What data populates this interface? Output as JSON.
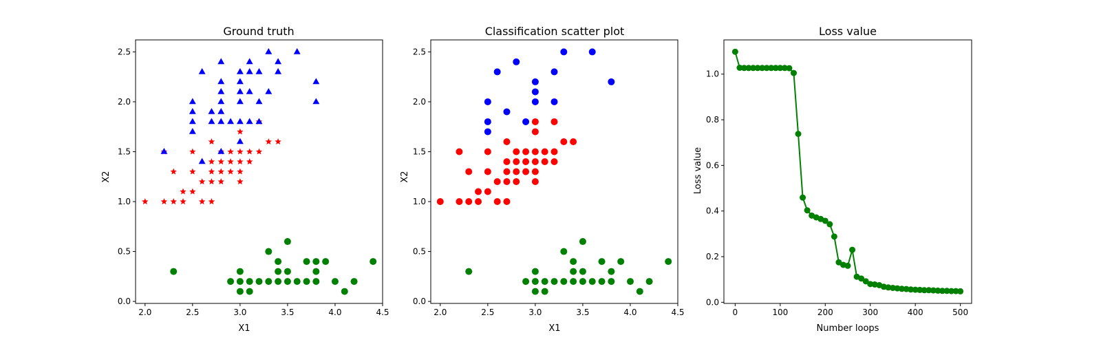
{
  "chart_data": [
    {
      "type": "scatter",
      "title": "Ground truth",
      "xlabel": "X1",
      "ylabel": "X2",
      "xlim": [
        1.9,
        4.5
      ],
      "ylim": [
        -0.02,
        2.62
      ],
      "xticks": [
        "2.0",
        "2.5",
        "3.0",
        "3.5",
        "4.0",
        "4.5"
      ],
      "yticks": [
        "0.0",
        "0.5",
        "1.0",
        "1.5",
        "2.0",
        "2.5"
      ],
      "series": [
        {
          "marker": "circle",
          "color": "#008000",
          "points": [
            [
              2.3,
              0.3
            ],
            [
              2.9,
              0.2
            ],
            [
              3.0,
              0.2
            ],
            [
              3.0,
              0.1
            ],
            [
              3.0,
              0.3
            ],
            [
              3.1,
              0.1
            ],
            [
              3.1,
              0.2
            ],
            [
              3.2,
              0.2
            ],
            [
              3.3,
              0.2
            ],
            [
              3.3,
              0.5
            ],
            [
              3.4,
              0.2
            ],
            [
              3.4,
              0.3
            ],
            [
              3.4,
              0.4
            ],
            [
              3.5,
              0.2
            ],
            [
              3.5,
              0.3
            ],
            [
              3.5,
              0.6
            ],
            [
              3.6,
              0.2
            ],
            [
              3.7,
              0.2
            ],
            [
              3.7,
              0.4
            ],
            [
              3.8,
              0.2
            ],
            [
              3.8,
              0.3
            ],
            [
              3.8,
              0.4
            ],
            [
              3.9,
              0.4
            ],
            [
              4.0,
              0.2
            ],
            [
              4.1,
              0.1
            ],
            [
              4.2,
              0.2
            ],
            [
              4.4,
              0.4
            ]
          ]
        },
        {
          "marker": "star",
          "color": "#ff0000",
          "points": [
            [
              2.0,
              1.0
            ],
            [
              2.2,
              1.0
            ],
            [
              2.2,
              1.5
            ],
            [
              2.3,
              1.0
            ],
            [
              2.3,
              1.3
            ],
            [
              2.4,
              1.0
            ],
            [
              2.4,
              1.1
            ],
            [
              2.5,
              1.1
            ],
            [
              2.5,
              1.3
            ],
            [
              2.5,
              1.5
            ],
            [
              2.6,
              1.0
            ],
            [
              2.6,
              1.2
            ],
            [
              2.7,
              1.0
            ],
            [
              2.7,
              1.2
            ],
            [
              2.7,
              1.3
            ],
            [
              2.7,
              1.4
            ],
            [
              2.7,
              1.6
            ],
            [
              2.8,
              1.2
            ],
            [
              2.8,
              1.3
            ],
            [
              2.8,
              1.4
            ],
            [
              2.8,
              1.5
            ],
            [
              2.9,
              1.3
            ],
            [
              2.9,
              1.4
            ],
            [
              2.9,
              1.5
            ],
            [
              3.0,
              1.2
            ],
            [
              3.0,
              1.3
            ],
            [
              3.0,
              1.4
            ],
            [
              3.0,
              1.5
            ],
            [
              3.0,
              1.7
            ],
            [
              3.1,
              1.4
            ],
            [
              3.1,
              1.5
            ],
            [
              3.2,
              1.5
            ],
            [
              3.2,
              1.8
            ],
            [
              3.3,
              1.6
            ],
            [
              3.4,
              1.6
            ]
          ]
        },
        {
          "marker": "triangle",
          "color": "#0000ff",
          "points": [
            [
              2.2,
              1.5
            ],
            [
              2.5,
              1.7
            ],
            [
              2.5,
              1.8
            ],
            [
              2.5,
              1.9
            ],
            [
              2.5,
              2.0
            ],
            [
              2.6,
              1.4
            ],
            [
              2.6,
              2.3
            ],
            [
              2.7,
              1.8
            ],
            [
              2.7,
              1.9
            ],
            [
              2.8,
              1.5
            ],
            [
              2.8,
              1.8
            ],
            [
              2.8,
              1.9
            ],
            [
              2.8,
              2.0
            ],
            [
              2.8,
              2.1
            ],
            [
              2.8,
              2.2
            ],
            [
              2.8,
              2.4
            ],
            [
              2.9,
              1.8
            ],
            [
              3.0,
              1.6
            ],
            [
              3.0,
              1.8
            ],
            [
              3.0,
              2.0
            ],
            [
              3.0,
              2.1
            ],
            [
              3.0,
              2.3
            ],
            [
              3.0,
              2.2
            ],
            [
              3.1,
              1.8
            ],
            [
              3.1,
              2.1
            ],
            [
              3.1,
              2.3
            ],
            [
              3.1,
              2.4
            ],
            [
              3.2,
              1.8
            ],
            [
              3.2,
              2.0
            ],
            [
              3.2,
              2.3
            ],
            [
              3.3,
              2.1
            ],
            [
              3.3,
              2.5
            ],
            [
              3.4,
              2.3
            ],
            [
              3.4,
              2.4
            ],
            [
              3.6,
              2.5
            ],
            [
              3.8,
              2.0
            ],
            [
              3.8,
              2.2
            ]
          ]
        }
      ]
    },
    {
      "type": "scatter",
      "title": "Classification scatter plot",
      "xlabel": "X1",
      "ylabel": "X2",
      "xlim": [
        1.9,
        4.5
      ],
      "ylim": [
        -0.02,
        2.62
      ],
      "xticks": [
        "2.0",
        "2.5",
        "3.0",
        "3.5",
        "4.0",
        "4.5"
      ],
      "yticks": [
        "0.0",
        "0.5",
        "1.0",
        "1.5",
        "2.0",
        "2.5"
      ],
      "series": [
        {
          "marker": "circle",
          "color": "#008000",
          "points": [
            [
              2.3,
              0.3
            ],
            [
              2.9,
              0.2
            ],
            [
              3.0,
              0.2
            ],
            [
              3.0,
              0.1
            ],
            [
              3.0,
              0.3
            ],
            [
              3.1,
              0.1
            ],
            [
              3.1,
              0.2
            ],
            [
              3.2,
              0.2
            ],
            [
              3.3,
              0.2
            ],
            [
              3.3,
              0.5
            ],
            [
              3.4,
              0.2
            ],
            [
              3.4,
              0.3
            ],
            [
              3.4,
              0.4
            ],
            [
              3.5,
              0.2
            ],
            [
              3.5,
              0.3
            ],
            [
              3.5,
              0.6
            ],
            [
              3.6,
              0.2
            ],
            [
              3.7,
              0.2
            ],
            [
              3.7,
              0.4
            ],
            [
              3.8,
              0.2
            ],
            [
              3.8,
              0.3
            ],
            [
              3.9,
              0.4
            ],
            [
              4.0,
              0.2
            ],
            [
              4.1,
              0.1
            ],
            [
              4.2,
              0.2
            ],
            [
              4.4,
              0.4
            ]
          ]
        },
        {
          "marker": "circle",
          "color": "#ff0000",
          "points": [
            [
              2.0,
              1.0
            ],
            [
              2.2,
              1.0
            ],
            [
              2.2,
              1.5
            ],
            [
              2.3,
              1.0
            ],
            [
              2.3,
              1.3
            ],
            [
              2.4,
              1.0
            ],
            [
              2.4,
              1.1
            ],
            [
              2.5,
              1.1
            ],
            [
              2.5,
              1.3
            ],
            [
              2.5,
              1.5
            ],
            [
              2.6,
              1.0
            ],
            [
              2.6,
              1.2
            ],
            [
              2.7,
              1.0
            ],
            [
              2.7,
              1.2
            ],
            [
              2.7,
              1.3
            ],
            [
              2.7,
              1.4
            ],
            [
              2.7,
              1.6
            ],
            [
              2.8,
              1.2
            ],
            [
              2.8,
              1.3
            ],
            [
              2.8,
              1.4
            ],
            [
              2.8,
              1.5
            ],
            [
              2.9,
              1.3
            ],
            [
              2.9,
              1.4
            ],
            [
              2.9,
              1.5
            ],
            [
              3.0,
              1.2
            ],
            [
              3.0,
              1.3
            ],
            [
              3.0,
              1.4
            ],
            [
              3.0,
              1.5
            ],
            [
              3.0,
              1.7
            ],
            [
              3.0,
              1.8
            ],
            [
              3.1,
              1.4
            ],
            [
              3.1,
              1.5
            ],
            [
              3.2,
              1.4
            ],
            [
              3.2,
              1.5
            ],
            [
              3.2,
              1.8
            ],
            [
              3.3,
              1.6
            ],
            [
              3.4,
              1.6
            ]
          ]
        },
        {
          "marker": "circle",
          "color": "#0000ff",
          "points": [
            [
              2.5,
              1.7
            ],
            [
              2.5,
              1.8
            ],
            [
              2.5,
              2.0
            ],
            [
              2.6,
              2.3
            ],
            [
              2.7,
              1.9
            ],
            [
              2.8,
              2.4
            ],
            [
              2.9,
              1.8
            ],
            [
              3.0,
              2.0
            ],
            [
              3.0,
              2.1
            ],
            [
              3.0,
              2.2
            ],
            [
              3.2,
              2.0
            ],
            [
              3.2,
              2.3
            ],
            [
              3.3,
              2.5
            ],
            [
              3.6,
              2.5
            ],
            [
              3.8,
              2.2
            ]
          ]
        }
      ]
    },
    {
      "type": "line",
      "title": "Loss value",
      "xlabel": "Number loops",
      "ylabel": "Loss value",
      "xlim": [
        -25,
        525
      ],
      "ylim": [
        -0.005,
        1.15
      ],
      "xticks": [
        "0",
        "100",
        "200",
        "300",
        "400",
        "500"
      ],
      "yticks": [
        "0.0",
        "0.2",
        "0.4",
        "0.6",
        "0.8",
        "1.0"
      ],
      "color": "#008000",
      "x": [
        0,
        10,
        20,
        30,
        40,
        50,
        60,
        70,
        80,
        90,
        100,
        110,
        120,
        130,
        140,
        150,
        160,
        170,
        180,
        190,
        200,
        210,
        220,
        230,
        240,
        250,
        260,
        270,
        280,
        290,
        300,
        310,
        320,
        330,
        340,
        350,
        360,
        370,
        380,
        390,
        400,
        410,
        420,
        430,
        440,
        450,
        460,
        470,
        480,
        490,
        500
      ],
      "y": [
        1.098,
        1.028,
        1.027,
        1.027,
        1.027,
        1.027,
        1.027,
        1.027,
        1.027,
        1.027,
        1.027,
        1.027,
        1.026,
        1.005,
        0.738,
        0.459,
        0.403,
        0.38,
        0.372,
        0.365,
        0.357,
        0.342,
        0.288,
        0.175,
        0.164,
        0.16,
        0.23,
        0.112,
        0.104,
        0.092,
        0.08,
        0.078,
        0.075,
        0.068,
        0.065,
        0.063,
        0.061,
        0.059,
        0.058,
        0.056,
        0.055,
        0.054,
        0.053,
        0.053,
        0.052,
        0.051,
        0.05,
        0.05,
        0.049,
        0.049,
        0.048
      ]
    }
  ]
}
